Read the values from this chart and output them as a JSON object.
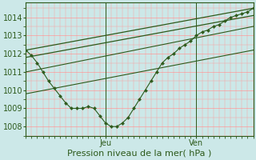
{
  "bg_color": "#cce8e8",
  "grid_color": "#ff9999",
  "line_color": "#2d5a1b",
  "dot_color": "#2d5a1b",
  "axis_color": "#2d5a1b",
  "xlabel_text": "Pression niveau de la mer( hPa )",
  "xlabel_jeu": "Jeu",
  "xlabel_ven": "Ven",
  "ylim": [
    1007.5,
    1014.8
  ],
  "yticks": [
    1008,
    1009,
    1010,
    1011,
    1012,
    1013,
    1014
  ],
  "label_fontsize": 7,
  "series1_x": [
    0,
    1,
    2,
    3,
    4,
    5,
    6,
    7,
    8,
    9,
    10,
    11,
    12,
    13,
    14,
    15,
    16,
    17,
    18,
    19,
    20,
    21,
    22,
    23,
    24,
    25,
    26,
    27,
    28,
    29,
    30,
    31,
    32,
    33,
    34,
    35,
    36,
    37,
    38,
    39,
    40
  ],
  "series1_y": [
    1012.2,
    1011.9,
    1011.5,
    1011.0,
    1010.5,
    1010.1,
    1009.7,
    1009.3,
    1009.0,
    1009.0,
    1009.0,
    1009.1,
    1009.0,
    1008.6,
    1008.2,
    1008.0,
    1008.0,
    1008.2,
    1008.5,
    1009.0,
    1009.5,
    1010.0,
    1010.5,
    1011.0,
    1011.5,
    1011.8,
    1012.0,
    1012.3,
    1012.5,
    1012.7,
    1013.0,
    1013.2,
    1013.3,
    1013.5,
    1013.6,
    1013.8,
    1014.0,
    1014.1,
    1014.2,
    1014.3,
    1014.5
  ],
  "line1_x": [
    0,
    40
  ],
  "line1_y": [
    1012.2,
    1014.5
  ],
  "line2_x": [
    0,
    40
  ],
  "line2_y": [
    1011.8,
    1014.1
  ],
  "line3_x": [
    0,
    40
  ],
  "line3_y": [
    1011.0,
    1013.5
  ],
  "line4_x": [
    0,
    40
  ],
  "line4_y": [
    1009.8,
    1012.2
  ],
  "jeu_x": 14,
  "ven_x": 30,
  "total_points": 41,
  "xmin": 0,
  "xmax": 40
}
